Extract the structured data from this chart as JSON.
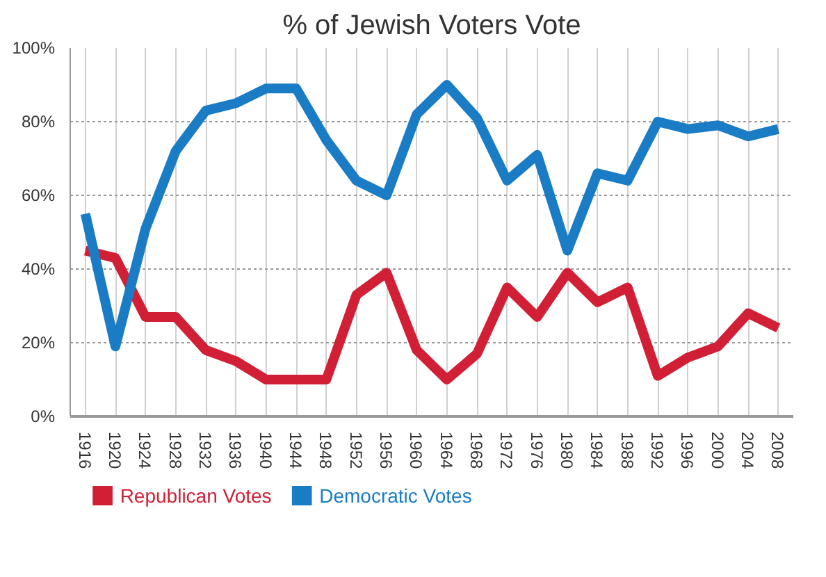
{
  "chart_data": {
    "type": "line",
    "title": "% of Jewish Voters Vote",
    "categories": [
      "1916",
      "1920",
      "1924",
      "1928",
      "1932",
      "1936",
      "1940",
      "1944",
      "1948",
      "1952",
      "1956",
      "1960",
      "1964",
      "1968",
      "1972",
      "1976",
      "1980",
      "1984",
      "1988",
      "1992",
      "1996",
      "2000",
      "2004",
      "2008"
    ],
    "series": [
      {
        "name": "Republican Votes",
        "color": "#d11f36",
        "values": [
          45,
          43,
          27,
          27,
          18,
          15,
          10,
          10,
          10,
          33,
          39,
          18,
          10,
          17,
          35,
          27,
          39,
          31,
          35,
          11,
          16,
          19,
          28,
          24
        ]
      },
      {
        "name": "Democratic Votes",
        "color": "#1a7cc4",
        "values": [
          55,
          19,
          51,
          72,
          83,
          85,
          89,
          89,
          75,
          64,
          60,
          82,
          90,
          81,
          64,
          71,
          45,
          66,
          64,
          80,
          78,
          79,
          76,
          78
        ]
      }
    ],
    "ylim": [
      0,
      100
    ],
    "yticks": [
      {
        "value": 0,
        "label": "0%"
      },
      {
        "value": 20,
        "label": "20%"
      },
      {
        "value": 40,
        "label": "40%"
      },
      {
        "value": 60,
        "label": "60%"
      },
      {
        "value": 80,
        "label": "80%"
      },
      {
        "value": 100,
        "label": "100%"
      }
    ],
    "grid": true,
    "legend": "bottom",
    "line_style": "solid"
  }
}
